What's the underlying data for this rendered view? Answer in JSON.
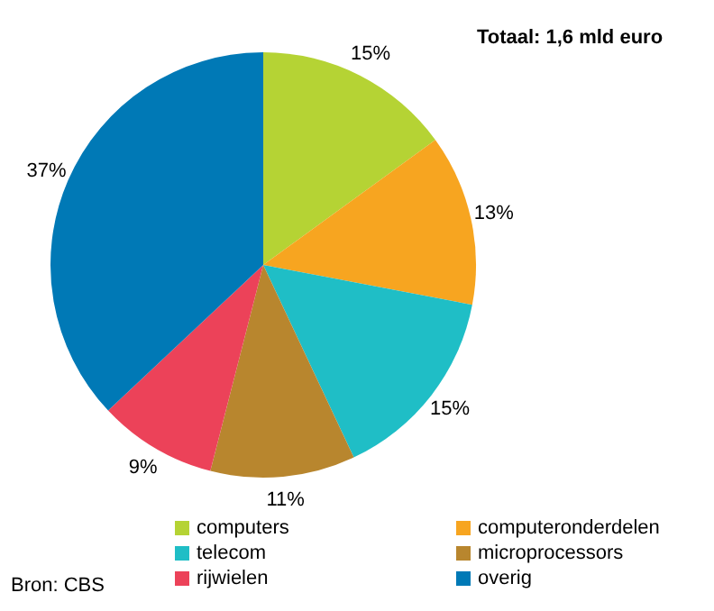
{
  "chart_data": {
    "type": "pie",
    "title": "Totaal: 1,6 mld euro",
    "categories": [
      "computers",
      "computeronderdelen",
      "telecom",
      "microprocessors",
      "rijwielen",
      "overig"
    ],
    "values": [
      15,
      13,
      15,
      11,
      9,
      37
    ],
    "colors": [
      "#b5d334",
      "#f7a520",
      "#1fbec6",
      "#b8862e",
      "#ec4259",
      "#0079b6"
    ],
    "value_labels": [
      "15%",
      "13%",
      "15%",
      "11%",
      "9%",
      "37%"
    ],
    "legend": "bottom",
    "annotations": [
      "Bron: CBS"
    ]
  }
}
